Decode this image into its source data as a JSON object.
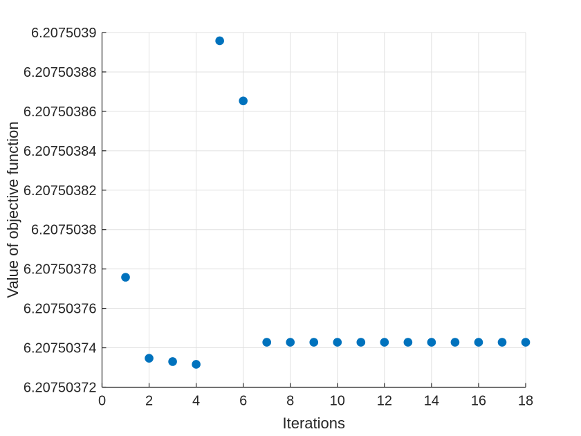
{
  "figure": {
    "background": "#ffffff"
  },
  "colors": {
    "marker": "#0072BD",
    "grid": "#e0e0e0",
    "axis": "#262626",
    "tick_text": "#262626",
    "background": "#ffffff"
  },
  "chart_data": {
    "type": "scatter",
    "title": "",
    "xlabel": "Iterations",
    "ylabel": "Value of objective function",
    "x": [
      1,
      2,
      3,
      4,
      5,
      6,
      7,
      8,
      9,
      10,
      11,
      12,
      13,
      14,
      15,
      16,
      17,
      18
    ],
    "y": [
      6.2075037758,
      6.2075037347,
      6.207503733,
      6.2075037316,
      6.2075038958,
      6.2075038653,
      6.2075037428,
      6.2075037428,
      6.2075037428,
      6.2075037428,
      6.2075037428,
      6.2075037428,
      6.2075037428,
      6.2075037428,
      6.2075037428,
      6.2075037428,
      6.2075037428,
      6.2075037428
    ],
    "xlim": [
      0,
      18
    ],
    "ylim": [
      6.20750372,
      6.2075039
    ],
    "xticks": [
      0,
      2,
      4,
      6,
      8,
      10,
      12,
      14,
      16,
      18
    ],
    "xtick_labels": [
      "0",
      "2",
      "4",
      "6",
      "8",
      "10",
      "12",
      "14",
      "16",
      "18"
    ],
    "ytick_values": [
      6.20750372,
      6.20750374,
      6.20750376,
      6.20750378,
      6.2075038,
      6.20750382,
      6.20750384,
      6.20750386,
      6.20750388,
      6.2075039
    ],
    "ytick_labels": [
      "6.20750372",
      "6.20750374",
      "6.20750376",
      "6.20750378",
      "6.2075038",
      "6.20750382",
      "6.20750384",
      "6.20750386",
      "6.20750388",
      "6.2075039"
    ],
    "grid": true,
    "legend": null,
    "marker": {
      "shape": "circle",
      "color": "#0072BD",
      "radius_px": 6.3
    }
  }
}
